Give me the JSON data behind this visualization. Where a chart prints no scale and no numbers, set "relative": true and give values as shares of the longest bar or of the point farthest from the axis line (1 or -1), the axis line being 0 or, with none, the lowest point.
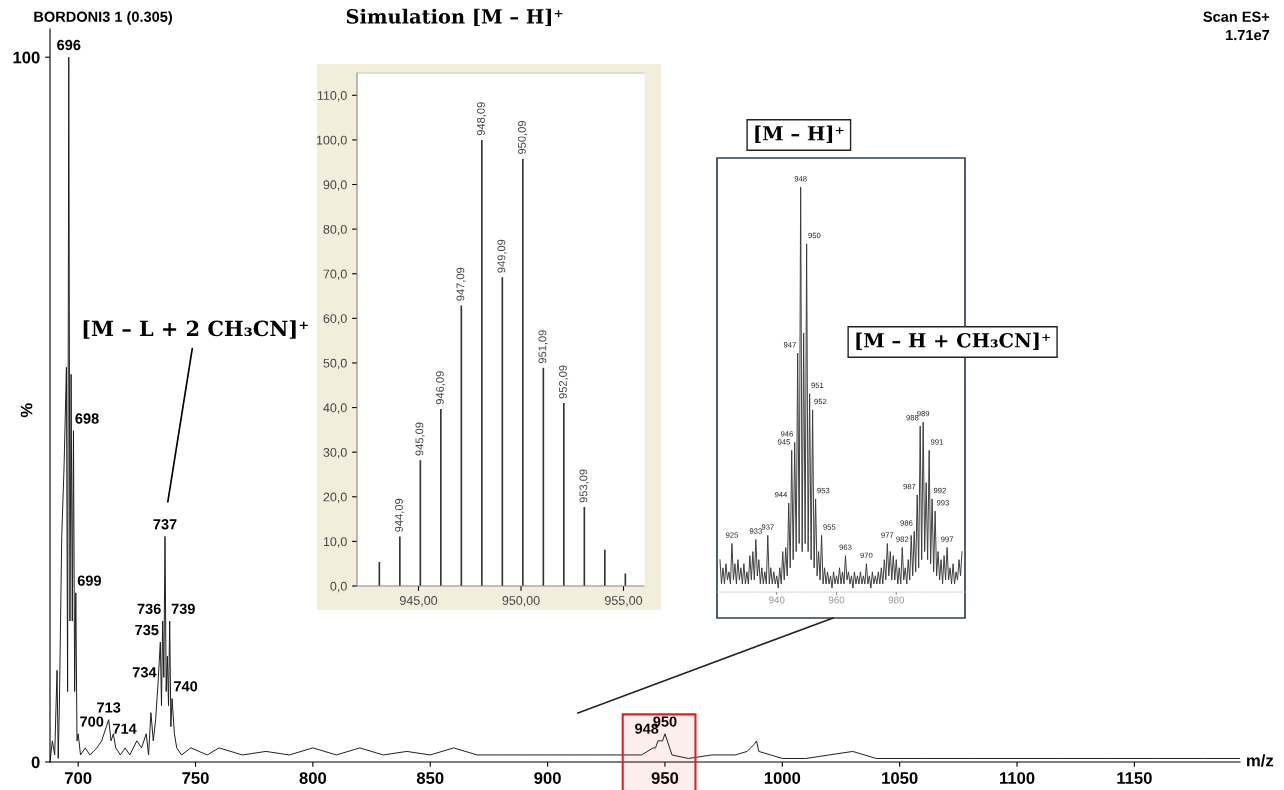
{
  "chart_data": [
    {
      "type": "line",
      "xlabel": "m/z",
      "ylabel": "%",
      "x": [
        688,
        689,
        690,
        691,
        691.5,
        692,
        693,
        694,
        695,
        695.5,
        696,
        696.5,
        697,
        697.5,
        698,
        698.5,
        699,
        699.5,
        700,
        701,
        703,
        705,
        708,
        710,
        711,
        712,
        713,
        714,
        715,
        716,
        718,
        720,
        722,
        725,
        727,
        729,
        730,
        731,
        732,
        733,
        734,
        735,
        735.5,
        736,
        736.5,
        737,
        737.5,
        738,
        738.5,
        739,
        739.5,
        740,
        741,
        742,
        744,
        748,
        755,
        760,
        770,
        780,
        790,
        800,
        810,
        820,
        830,
        840,
        850,
        860,
        870,
        880,
        890,
        900,
        910,
        920,
        930,
        940,
        945,
        946,
        947,
        948,
        949,
        950,
        951,
        952,
        953,
        960,
        970,
        980,
        985,
        988,
        989,
        990,
        995,
        1000,
        1010,
        1020,
        1030,
        1040,
        1060,
        1080,
        1100,
        1120,
        1140,
        1160,
        1180,
        1195
      ],
      "series": [
        {
          "color": "#1a1a1a",
          "values": [
            0,
            3,
            1,
            13,
            0.5,
            8,
            32,
            42,
            56,
            10,
            100,
            20,
            55,
            20,
            47,
            10,
            24,
            3,
            4,
            1,
            2,
            1,
            2,
            3,
            4,
            5,
            6,
            3,
            4,
            2,
            1,
            2,
            1,
            3,
            2,
            4,
            1,
            7,
            3,
            6,
            11,
            17,
            8,
            20,
            12,
            32,
            10,
            15,
            8,
            20,
            5,
            9,
            4,
            2,
            1,
            2,
            1,
            2,
            1,
            1.5,
            1,
            2,
            1,
            2,
            1,
            1.5,
            1,
            2,
            1,
            1,
            1,
            1,
            1,
            1,
            1,
            1,
            2,
            2,
            3,
            3,
            3,
            4,
            3,
            2,
            1,
            0.5,
            1,
            1,
            1.5,
            2.5,
            3,
            1.5,
            1,
            0.5,
            0.5,
            1,
            1.5,
            0.5,
            0.5,
            0.5,
            0.5,
            0.5,
            0.5,
            0.5,
            0.5,
            0.5
          ]
        }
      ],
      "xlim": [
        688,
        1195
      ],
      "xticks": [
        700,
        750,
        800,
        850,
        900,
        950,
        1000,
        1050,
        1100,
        1150
      ],
      "ylim": [
        0,
        104
      ],
      "yticks": [
        0,
        100
      ],
      "bands": [
        {
          "axis": "x",
          "from": 932,
          "to": 963,
          "color": "#e02020"
        }
      ],
      "annotations": [
        "BORDONI3 1 (0.305)",
        "Scan ES+",
        "1.71e7",
        {
          "text": "696",
          "x": 696,
          "y": 100
        },
        {
          "text": "698",
          "x": 698,
          "y": 47
        },
        {
          "text": "699",
          "x": 699,
          "y": 24
        },
        {
          "text": "700",
          "x": 700,
          "y": 4
        },
        {
          "text": "713",
          "x": 713,
          "y": 6
        },
        {
          "text": "714",
          "x": 714,
          "y": 3
        },
        {
          "text": "734",
          "x": 734,
          "y": 11
        },
        {
          "text": "735",
          "x": 735,
          "y": 17
        },
        {
          "text": "736",
          "x": 736,
          "y": 20
        },
        {
          "text": "737",
          "x": 737,
          "y": 32
        },
        {
          "text": "739",
          "x": 739,
          "y": 20
        },
        {
          "text": "740",
          "x": 740,
          "y": 9
        },
        {
          "text": "948",
          "x": 948,
          "y": 3
        },
        {
          "text": "950",
          "x": 950,
          "y": 4
        },
        "[M – L + 2 CH₃CN]⁺"
      ]
    },
    {
      "type": "bar",
      "title": "Simulation [M – H]⁺",
      "x": [
        943.09,
        944.09,
        945.09,
        946.09,
        947.09,
        948.09,
        949.09,
        950.09,
        951.09,
        952.09,
        953.09,
        954.09,
        955.09
      ],
      "series": [
        {
          "color": "#333333",
          "values": [
            5.4,
            11.1,
            28.2,
            39.7,
            62.9,
            100,
            69.2,
            95.8,
            48.9,
            41.0,
            17.7,
            8.1,
            2.8
          ]
        }
      ],
      "xlim": [
        942,
        956
      ],
      "xticks": [
        {
          "value": 945,
          "label": "945,00"
        },
        {
          "value": 950,
          "label": "950,00"
        },
        {
          "value": 955,
          "label": "955,00"
        }
      ],
      "ylim": [
        0,
        115
      ],
      "yticks": [
        {
          "value": 0,
          "label": "0,0"
        },
        {
          "value": 10,
          "label": "10,0"
        },
        {
          "value": 20,
          "label": "20,0"
        },
        {
          "value": 30,
          "label": "30,0"
        },
        {
          "value": 40,
          "label": "40,0"
        },
        {
          "value": 50,
          "label": "50,0"
        },
        {
          "value": 60,
          "label": "60,0"
        },
        {
          "value": 70,
          "label": "70,0"
        },
        {
          "value": 80,
          "label": "80,0"
        },
        {
          "value": 90,
          "label": "90,0"
        },
        {
          "value": 100,
          "label": "100,0"
        },
        {
          "value": 110,
          "label": "110,0"
        }
      ],
      "annotations": [
        {
          "text": "944,09",
          "x": 944.09,
          "y": 11.1
        },
        {
          "text": "945,09",
          "x": 945.09,
          "y": 28.2
        },
        {
          "text": "946,09",
          "x": 946.09,
          "y": 39.7
        },
        {
          "text": "947,09",
          "x": 947.09,
          "y": 62.9
        },
        {
          "text": "948,09",
          "x": 948.09,
          "y": 100
        },
        {
          "text": "949,09",
          "x": 949.09,
          "y": 69.2
        },
        {
          "text": "950,09",
          "x": 950.09,
          "y": 95.8
        },
        {
          "text": "951,09",
          "x": 951.09,
          "y": 48.9
        },
        {
          "text": "952,09",
          "x": 952.09,
          "y": 41.0
        },
        {
          "text": "953,09",
          "x": 953.09,
          "y": 17.7
        }
      ]
    },
    {
      "type": "line",
      "title": "[M – H]⁺",
      "relative": true,
      "tick_labels": "x",
      "x": [
        921,
        921.5,
        922,
        922.5,
        923,
        923.5,
        924,
        924.5,
        925,
        925.5,
        926,
        926.5,
        927,
        927.5,
        928,
        928.5,
        929,
        929.5,
        930,
        930.5,
        931,
        931.5,
        932,
        932.5,
        933,
        933.5,
        934,
        934.5,
        935,
        935.5,
        936,
        936.5,
        937,
        937.5,
        938,
        938.5,
        939,
        939.5,
        940,
        940.5,
        941,
        941.5,
        942,
        942.5,
        943,
        943.5,
        944,
        944.5,
        945,
        945.5,
        946,
        946.5,
        947,
        947.5,
        948,
        948.5,
        949,
        949.5,
        950,
        950.5,
        951,
        951.5,
        952,
        952.5,
        953,
        953.5,
        954,
        954.5,
        955,
        955.5,
        956,
        956.5,
        957,
        957.5,
        958,
        958.5,
        959,
        959.5,
        960,
        960.5,
        961,
        961.5,
        962,
        962.5,
        963,
        963.5,
        964,
        964.5,
        965,
        965.5,
        966,
        966.5,
        967,
        967.5,
        968,
        968.5,
        969,
        969.5,
        970,
        970.5,
        971,
        971.5,
        972,
        972.5,
        973,
        973.5,
        974,
        974.5,
        975,
        975.5,
        976,
        976.5,
        977,
        977.5,
        978,
        978.5,
        979,
        979.5,
        980,
        980.5,
        981,
        981.5,
        982,
        982.5,
        983,
        983.5,
        984,
        984.5,
        985,
        985.5,
        986,
        986.5,
        987,
        987.5,
        988,
        988.5,
        989,
        989.5,
        990,
        990.5,
        991,
        991.5,
        992,
        992.5,
        993,
        993.5,
        994,
        994.5,
        995,
        995.5,
        996,
        996.5,
        997,
        997.5,
        998,
        998.5,
        999,
        999.5,
        1000,
        1000.5,
        1001,
        1001.5,
        1002
      ],
      "series": [
        {
          "color": "#3a3a3a",
          "values": [
            0.08,
            0.02,
            0.06,
            0.02,
            0.07,
            0.03,
            0.05,
            0.02,
            0.12,
            0.03,
            0.07,
            0.02,
            0.08,
            0.03,
            0.06,
            0.02,
            0.07,
            0.02,
            0.05,
            0.02,
            0.09,
            0.03,
            0.1,
            0.03,
            0.13,
            0.04,
            0.08,
            0.02,
            0.06,
            0.02,
            0.05,
            0.02,
            0.14,
            0.02,
            0.06,
            0.02,
            0.05,
            0.02,
            0.04,
            0.01,
            0.06,
            0.02,
            0.1,
            0.03,
            0.11,
            0.04,
            0.22,
            0.06,
            0.35,
            0.08,
            0.37,
            0.1,
            0.59,
            0.12,
            1,
            0.1,
            0.64,
            0.12,
            0.86,
            0.1,
            0.49,
            0.08,
            0.45,
            0.06,
            0.23,
            0.04,
            0.1,
            0.03,
            0.14,
            0.02,
            0.06,
            0.02,
            0.05,
            0.02,
            0.04,
            0.01,
            0.05,
            0.02,
            0.04,
            0.02,
            0.06,
            0.02,
            0.05,
            0.02,
            0.09,
            0.03,
            0.05,
            0.02,
            0.04,
            0.01,
            0.05,
            0.02,
            0.04,
            0.02,
            0.05,
            0.02,
            0.04,
            0.02,
            0.07,
            0.02,
            0.04,
            0.01,
            0.05,
            0.02,
            0.04,
            0.02,
            0.05,
            0.02,
            0.06,
            0.02,
            0.08,
            0.03,
            0.12,
            0.04,
            0.1,
            0.03,
            0.09,
            0.03,
            0.08,
            0.02,
            0.06,
            0.02,
            0.11,
            0.03,
            0.06,
            0.02,
            0.08,
            0.03,
            0.14,
            0.04,
            0.15,
            0.05,
            0.24,
            0.06,
            0.41,
            0.08,
            0.42,
            0.1,
            0.27,
            0.08,
            0.35,
            0.07,
            0.23,
            0.05,
            0.2,
            0.04,
            0.1,
            0.03,
            0.08,
            0.02,
            0.09,
            0.03,
            0.11,
            0.03,
            0.06,
            0.02,
            0.07,
            0.02,
            0.05,
            0.03,
            0.08,
            0.04,
            0.1
          ]
        }
      ],
      "xlim": [
        920,
        1003
      ],
      "xticks": [
        940,
        960,
        980
      ],
      "annotations": [
        "[M – H + CH₃CN]⁺",
        {
          "text": "925",
          "x": 925,
          "y": 0.12
        },
        {
          "text": "933",
          "x": 933,
          "y": 0.13
        },
        {
          "text": "937",
          "x": 937,
          "y": 0.14
        },
        {
          "text": "944",
          "x": 944,
          "y": 0.22
        },
        {
          "text": "945",
          "x": 945,
          "y": 0.35
        },
        {
          "text": "946",
          "x": 946,
          "y": 0.37
        },
        {
          "text": "947",
          "x": 947,
          "y": 0.59
        },
        {
          "text": "948",
          "x": 948,
          "y": 1
        },
        {
          "text": "950",
          "x": 950,
          "y": 0.86
        },
        {
          "text": "951",
          "x": 951,
          "y": 0.49
        },
        {
          "text": "952",
          "x": 952,
          "y": 0.45
        },
        {
          "text": "953",
          "x": 953,
          "y": 0.23
        },
        {
          "text": "955",
          "x": 955,
          "y": 0.14
        },
        {
          "text": "963",
          "x": 963,
          "y": 0.09
        },
        {
          "text": "970",
          "x": 970,
          "y": 0.07
        },
        {
          "text": "977",
          "x": 977,
          "y": 0.12
        },
        {
          "text": "982",
          "x": 982,
          "y": 0.11
        },
        {
          "text": "986",
          "x": 986,
          "y": 0.15
        },
        {
          "text": "987",
          "x": 987,
          "y": 0.24
        },
        {
          "text": "988",
          "x": 988,
          "y": 0.41
        },
        {
          "text": "989",
          "x": 989,
          "y": 0.42
        },
        {
          "text": "991",
          "x": 991,
          "y": 0.35
        },
        {
          "text": "992",
          "x": 992,
          "y": 0.23
        },
        {
          "text": "993",
          "x": 993,
          "y": 0.2
        },
        {
          "text": "997",
          "x": 997,
          "y": 0.11
        }
      ]
    }
  ]
}
